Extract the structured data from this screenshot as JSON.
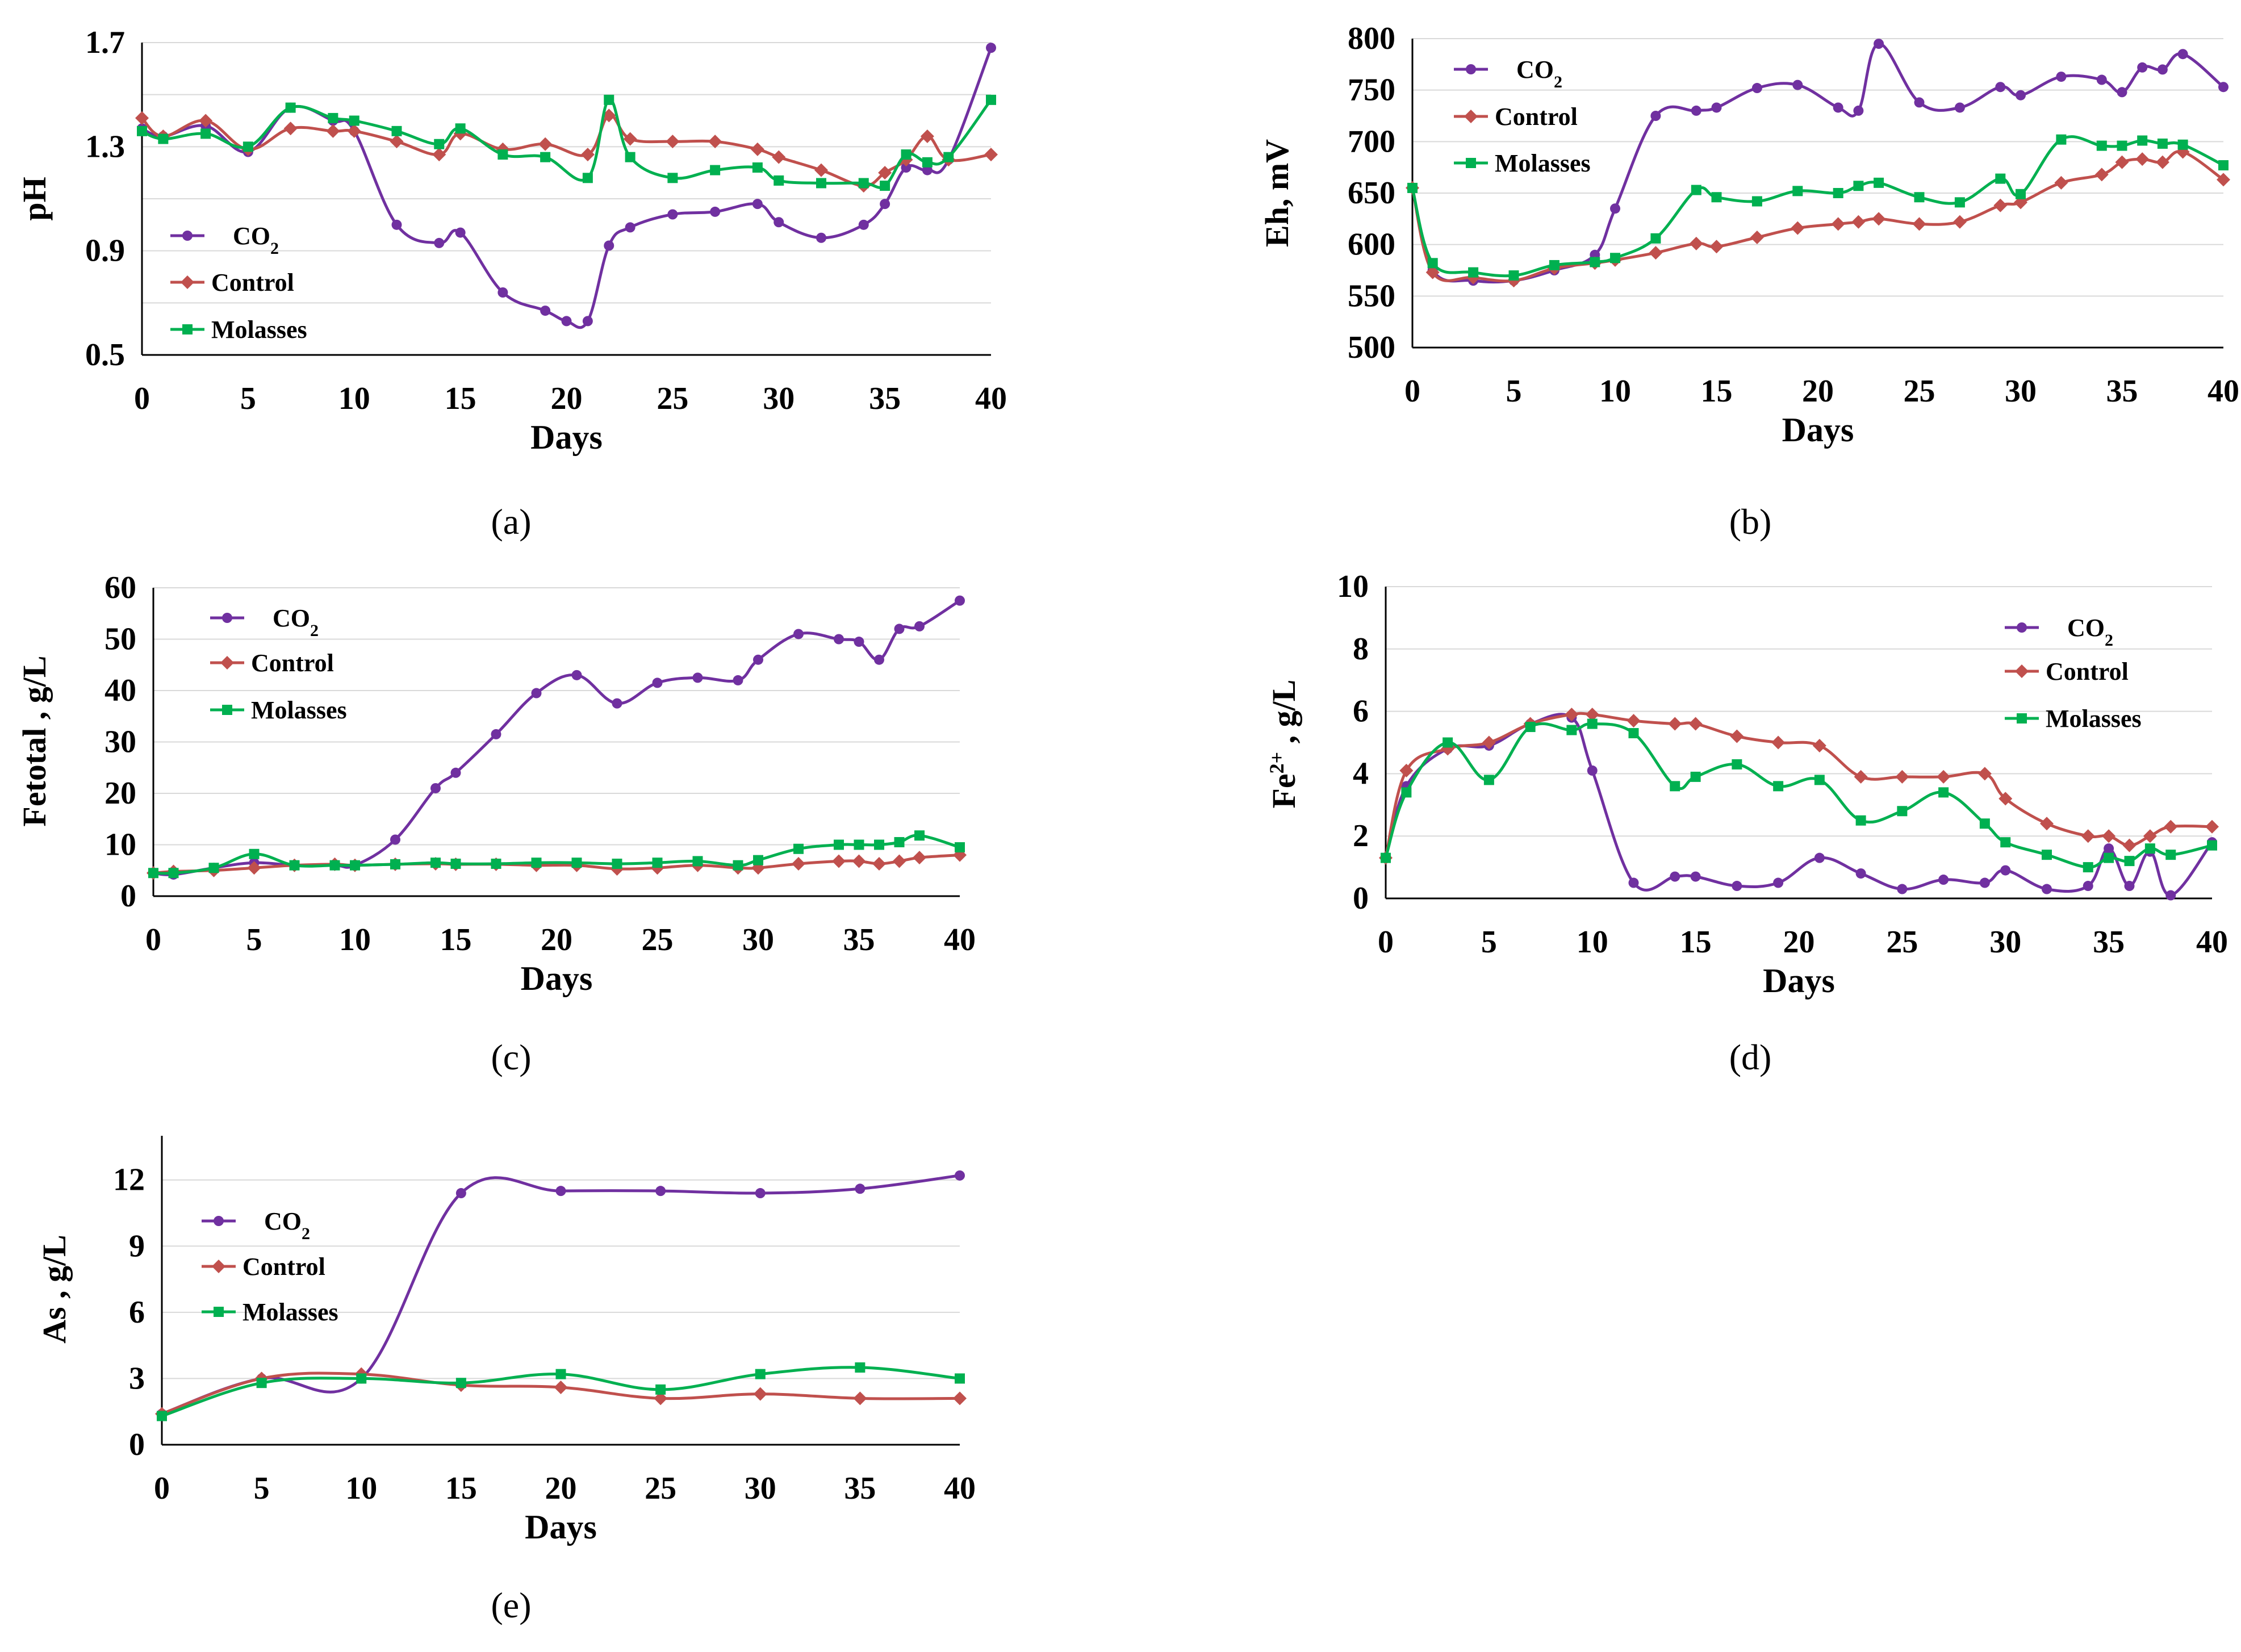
{
  "colors": {
    "co2": "#7030A0",
    "control": "#C0504D",
    "molasses": "#00B050"
  },
  "chart_data": [
    {
      "id": "a",
      "type": "line",
      "panel_label": "(a)",
      "xlabel": "Days",
      "ylabel": "pH",
      "xlim": [
        0,
        40
      ],
      "ylim": [
        0.5,
        1.7
      ],
      "xticks": [
        0,
        5,
        10,
        15,
        20,
        25,
        30,
        35,
        40
      ],
      "yticks": [
        0.5,
        0.9,
        1.3,
        1.7
      ],
      "ytick_labels": [
        "0.5",
        "0.9",
        "1.3",
        "1.7"
      ],
      "legend": [
        {
          "key": "co2",
          "label": "CO",
          "sub": "2"
        },
        {
          "key": "control",
          "label": "Control"
        },
        {
          "key": "molasses",
          "label": "Molasses"
        }
      ],
      "series": [
        {
          "key": "co2",
          "marker": "circle",
          "x": [
            0,
            1,
            3,
            5,
            7,
            9,
            10,
            12,
            14,
            15,
            17,
            19,
            20,
            21,
            22,
            23,
            25,
            27,
            29,
            30,
            32,
            34,
            35,
            36,
            37,
            38,
            40
          ],
          "y": [
            1.37,
            1.34,
            1.38,
            1.28,
            1.45,
            1.4,
            1.36,
            1.0,
            0.93,
            0.97,
            0.74,
            0.67,
            0.63,
            0.63,
            0.92,
            0.99,
            1.04,
            1.05,
            1.08,
            1.01,
            0.95,
            1.0,
            1.08,
            1.22,
            1.21,
            1.25,
            1.68
          ]
        },
        {
          "key": "control",
          "marker": "diamond",
          "x": [
            0,
            1,
            3,
            5,
            7,
            9,
            10,
            12,
            14,
            15,
            17,
            19,
            21,
            22,
            23,
            25,
            27,
            29,
            30,
            32,
            34,
            35,
            36,
            37,
            38,
            40
          ],
          "y": [
            1.41,
            1.34,
            1.4,
            1.29,
            1.37,
            1.36,
            1.36,
            1.32,
            1.27,
            1.35,
            1.29,
            1.31,
            1.27,
            1.42,
            1.33,
            1.32,
            1.32,
            1.29,
            1.26,
            1.21,
            1.15,
            1.2,
            1.25,
            1.34,
            1.25,
            1.27
          ]
        },
        {
          "key": "molasses",
          "marker": "square",
          "x": [
            0,
            1,
            3,
            5,
            7,
            9,
            10,
            12,
            14,
            15,
            17,
            19,
            21,
            22,
            23,
            25,
            27,
            29,
            30,
            32,
            34,
            35,
            36,
            37,
            38,
            40
          ],
          "y": [
            1.36,
            1.33,
            1.35,
            1.3,
            1.45,
            1.41,
            1.4,
            1.36,
            1.31,
            1.37,
            1.27,
            1.26,
            1.18,
            1.48,
            1.26,
            1.18,
            1.21,
            1.22,
            1.17,
            1.16,
            1.16,
            1.15,
            1.27,
            1.24,
            1.26,
            1.48
          ]
        }
      ]
    },
    {
      "id": "b",
      "type": "line",
      "panel_label": "(b)",
      "xlabel": "Days",
      "ylabel": "Eh, mV",
      "xlim": [
        0,
        40
      ],
      "ylim": [
        500,
        800
      ],
      "xticks": [
        0,
        5,
        10,
        15,
        20,
        25,
        30,
        35,
        40
      ],
      "yticks": [
        500,
        550,
        600,
        650,
        700,
        750,
        800
      ],
      "ytick_labels": [
        "500",
        "550",
        "600",
        "650",
        "700",
        "750",
        "800"
      ],
      "legend": [
        {
          "key": "co2",
          "label": "CO",
          "sub": "2"
        },
        {
          "key": "control",
          "label": "Control"
        },
        {
          "key": "molasses",
          "label": "Molasses"
        }
      ],
      "series": [
        {
          "key": "co2",
          "marker": "circle",
          "x": [
            0,
            1,
            3,
            5,
            7,
            9,
            10,
            12,
            14,
            15,
            17,
            19,
            21,
            22,
            23,
            25,
            27,
            29,
            30,
            32,
            34,
            35,
            36,
            37,
            38,
            40
          ],
          "y": [
            655,
            575,
            565,
            565,
            575,
            590,
            635,
            725,
            730,
            733,
            752,
            755,
            733,
            730,
            795,
            738,
            733,
            753,
            745,
            763,
            760,
            748,
            772,
            770,
            785,
            753
          ]
        },
        {
          "key": "control",
          "marker": "diamond",
          "x": [
            0,
            1,
            3,
            5,
            7,
            9,
            10,
            12,
            14,
            15,
            17,
            19,
            21,
            22,
            23,
            25,
            27,
            29,
            30,
            32,
            34,
            35,
            36,
            37,
            38,
            40
          ],
          "y": [
            655,
            573,
            568,
            565,
            577,
            582,
            585,
            592,
            601,
            598,
            607,
            616,
            620,
            622,
            625,
            620,
            622,
            638,
            641,
            660,
            668,
            680,
            683,
            680,
            690,
            663
          ]
        },
        {
          "key": "molasses",
          "marker": "square",
          "x": [
            0,
            1,
            3,
            5,
            7,
            9,
            10,
            12,
            14,
            15,
            17,
            19,
            21,
            22,
            23,
            25,
            27,
            29,
            30,
            32,
            34,
            35,
            36,
            37,
            38,
            40
          ],
          "y": [
            655,
            582,
            573,
            570,
            580,
            583,
            587,
            606,
            653,
            646,
            642,
            652,
            650,
            657,
            660,
            646,
            641,
            664,
            649,
            702,
            696,
            696,
            701,
            698,
            697,
            677
          ]
        }
      ]
    },
    {
      "id": "c",
      "type": "line",
      "panel_label": "(c)",
      "xlabel": "Days",
      "ylabel": "Fetotal , g/L",
      "xlim": [
        0,
        40
      ],
      "ylim": [
        0,
        60
      ],
      "xticks": [
        0,
        5,
        10,
        15,
        20,
        25,
        30,
        35,
        40
      ],
      "yticks": [
        0,
        10,
        20,
        30,
        40,
        50,
        60
      ],
      "ytick_labels": [
        "0",
        "10",
        "20",
        "30",
        "40",
        "50",
        "60"
      ],
      "legend": [
        {
          "key": "co2",
          "label": "CO",
          "sub": "2"
        },
        {
          "key": "control",
          "label": "Control"
        },
        {
          "key": "molasses",
          "label": "Molasses"
        }
      ],
      "series": [
        {
          "key": "co2",
          "marker": "circle",
          "x": [
            0,
            1,
            3,
            5,
            7,
            9,
            10,
            12,
            14,
            15,
            17,
            19,
            21,
            23,
            25,
            27,
            29,
            30,
            32,
            34,
            35,
            36,
            37,
            38,
            40
          ],
          "y": [
            4.5,
            4.2,
            5.5,
            6.5,
            6,
            6,
            6,
            11,
            21,
            24,
            31.5,
            39.5,
            43,
            37.5,
            41.5,
            42.5,
            42,
            46,
            51,
            50,
            49.5,
            46,
            52,
            52.5,
            57.5
          ]
        },
        {
          "key": "control",
          "marker": "diamond",
          "x": [
            0,
            1,
            3,
            5,
            7,
            9,
            10,
            12,
            14,
            15,
            17,
            19,
            21,
            23,
            25,
            27,
            29,
            30,
            32,
            34,
            35,
            36,
            37,
            38,
            40
          ],
          "y": [
            4.5,
            4.8,
            5,
            5.5,
            6,
            6.2,
            6,
            6.2,
            6.3,
            6.2,
            6.2,
            6,
            6,
            5.3,
            5.5,
            6,
            5.5,
            5.5,
            6.3,
            6.8,
            6.8,
            6.3,
            6.8,
            7.5,
            8
          ]
        },
        {
          "key": "molasses",
          "marker": "square",
          "x": [
            0,
            1,
            3,
            5,
            7,
            9,
            10,
            12,
            14,
            15,
            17,
            19,
            21,
            23,
            25,
            27,
            29,
            30,
            32,
            34,
            35,
            36,
            37,
            38,
            40
          ],
          "y": [
            4.5,
            4.5,
            5.5,
            8.2,
            6,
            6,
            6,
            6.2,
            6.5,
            6.3,
            6.3,
            6.5,
            6.5,
            6.3,
            6.5,
            6.8,
            6,
            7,
            9.2,
            10,
            10,
            10,
            10.5,
            11.8,
            9.5
          ]
        }
      ]
    },
    {
      "id": "d",
      "type": "line",
      "panel_label": "(d)",
      "xlabel": "Days",
      "ylabel": "Fe2+ , g/L",
      "xlim": [
        0,
        40
      ],
      "ylim": [
        0,
        10
      ],
      "xticks": [
        0,
        5,
        10,
        15,
        20,
        25,
        30,
        35,
        40
      ],
      "yticks": [
        0,
        2,
        4,
        6,
        8,
        10
      ],
      "ytick_labels": [
        "0",
        "2",
        "4",
        "6",
        "8",
        "10"
      ],
      "legend": [
        {
          "key": "co2",
          "label": "CO",
          "sub": "2"
        },
        {
          "key": "control",
          "label": "Control"
        },
        {
          "key": "molasses",
          "label": "Molasses"
        }
      ],
      "series": [
        {
          "key": "co2",
          "marker": "circle",
          "x": [
            0,
            1,
            3,
            5,
            7,
            9,
            10,
            12,
            14,
            15,
            17,
            19,
            21,
            23,
            25,
            27,
            29,
            30,
            32,
            34,
            35,
            36,
            37,
            38,
            40
          ],
          "y": [
            1.3,
            3.6,
            4.8,
            4.9,
            5.6,
            5.8,
            4.1,
            0.5,
            0.7,
            0.7,
            0.4,
            0.5,
            1.3,
            0.8,
            0.3,
            0.6,
            0.5,
            0.9,
            0.3,
            0.4,
            1.6,
            0.4,
            1.5,
            0.1,
            1.8
          ]
        },
        {
          "key": "control",
          "marker": "diamond",
          "x": [
            0,
            1,
            3,
            5,
            7,
            9,
            10,
            12,
            14,
            15,
            17,
            19,
            21,
            23,
            25,
            27,
            29,
            30,
            32,
            34,
            35,
            36,
            37,
            38,
            40
          ],
          "y": [
            1.3,
            4.1,
            4.8,
            5,
            5.6,
            5.9,
            5.9,
            5.7,
            5.6,
            5.6,
            5.2,
            5,
            4.9,
            3.9,
            3.9,
            3.9,
            4,
            3.2,
            2.4,
            2,
            2,
            1.7,
            2,
            2.3,
            2.3
          ]
        },
        {
          "key": "molasses",
          "marker": "square",
          "x": [
            0,
            1,
            3,
            5,
            7,
            9,
            10,
            12,
            14,
            15,
            17,
            19,
            21,
            23,
            25,
            27,
            29,
            30,
            32,
            34,
            35,
            36,
            37,
            38,
            40
          ],
          "y": [
            1.3,
            3.4,
            5,
            3.8,
            5.5,
            5.4,
            5.6,
            5.3,
            3.6,
            3.9,
            4.3,
            3.6,
            3.8,
            2.5,
            2.8,
            3.4,
            2.4,
            1.8,
            1.4,
            1,
            1.3,
            1.2,
            1.6,
            1.4,
            1.7
          ]
        }
      ]
    },
    {
      "id": "e",
      "type": "line",
      "panel_label": "(e)",
      "xlabel": "Days",
      "ylabel": "As , g/L",
      "xlim": [
        0,
        40
      ],
      "ylim": [
        0,
        14
      ],
      "xticks": [
        0,
        5,
        10,
        15,
        20,
        25,
        30,
        35,
        40
      ],
      "yticks": [
        0,
        3,
        6,
        9,
        12
      ],
      "ytick_labels": [
        "0",
        "3",
        "6",
        "9",
        "12"
      ],
      "legend": [
        {
          "key": "co2",
          "label": "CO",
          "sub": "2"
        },
        {
          "key": "control",
          "label": "Control"
        },
        {
          "key": "molasses",
          "label": "Molasses"
        }
      ],
      "series": [
        {
          "key": "co2",
          "marker": "circle",
          "x": [
            0,
            5,
            10,
            15,
            20,
            25,
            30,
            35,
            40
          ],
          "y": [
            1.4,
            3.0,
            3.0,
            11.4,
            11.5,
            11.5,
            11.4,
            11.6,
            12.2
          ]
        },
        {
          "key": "control",
          "marker": "diamond",
          "x": [
            0,
            5,
            10,
            15,
            20,
            25,
            30,
            35,
            40
          ],
          "y": [
            1.4,
            3.0,
            3.2,
            2.7,
            2.6,
            2.1,
            2.3,
            2.1,
            2.1
          ]
        },
        {
          "key": "molasses",
          "marker": "square",
          "x": [
            0,
            5,
            10,
            15,
            20,
            25,
            30,
            35,
            40
          ],
          "y": [
            1.3,
            2.8,
            3.0,
            2.8,
            3.2,
            2.5,
            3.2,
            3.5,
            3.0
          ]
        }
      ]
    }
  ]
}
